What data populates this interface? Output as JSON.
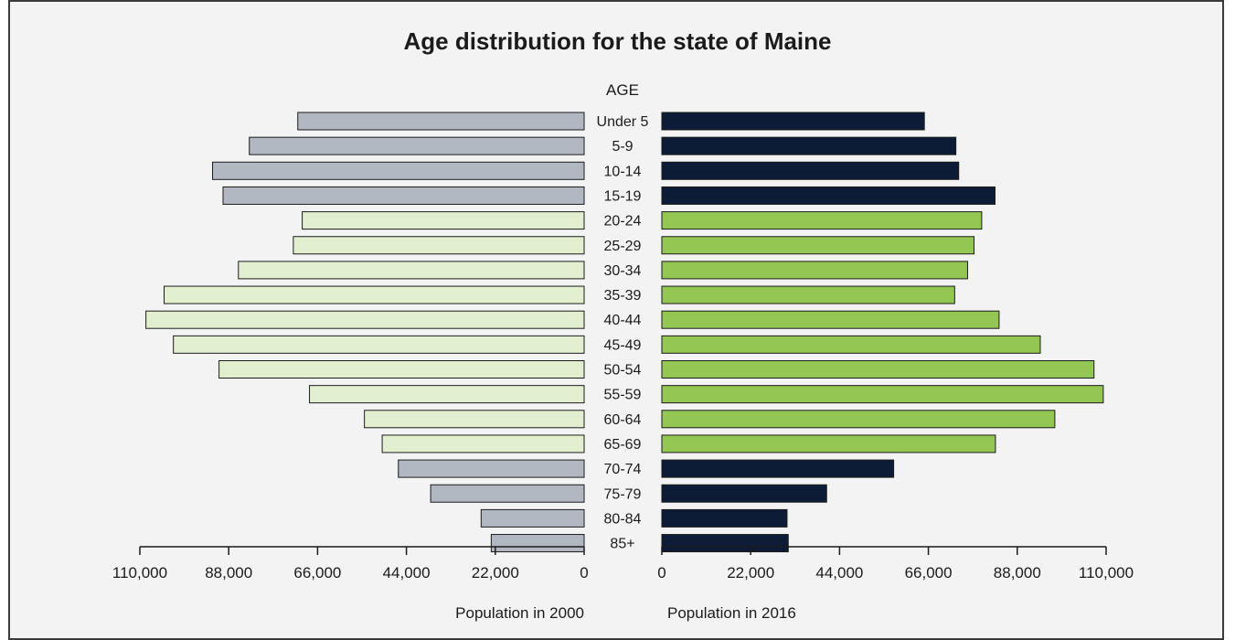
{
  "chart_data": {
    "type": "bar",
    "title": "Age distribution for the state of Maine",
    "center_header": "AGE",
    "categories": [
      "Under 5",
      "5-9",
      "10-14",
      "15-19",
      "20-24",
      "25-29",
      "30-34",
      "35-39",
      "40-44",
      "45-49",
      "50-54",
      "55-59",
      "60-64",
      "65-69",
      "70-74",
      "75-79",
      "80-84",
      "85+"
    ],
    "series": [
      {
        "name": "Population in 2000",
        "side": "left",
        "values": [
          70900,
          82900,
          92000,
          89400,
          69800,
          72000,
          85600,
          104000,
          108500,
          101700,
          90400,
          68000,
          54400,
          50000,
          46000,
          38000,
          25500,
          23000
        ]
      },
      {
        "name": "Population in 2016",
        "side": "right",
        "values": [
          65000,
          72800,
          73500,
          82500,
          79200,
          77300,
          75700,
          72500,
          83500,
          93700,
          107000,
          109300,
          97300,
          82600,
          57400,
          40800,
          31000,
          31300
        ]
      }
    ],
    "highlight_categories": [
      "20-24",
      "25-29",
      "30-34",
      "35-39",
      "40-44",
      "45-49",
      "50-54",
      "55-59",
      "60-64",
      "65-69"
    ],
    "colors": {
      "left_default": "#b2b8c2",
      "left_highlight": "#e2efcf",
      "right_default": "#0c1c36",
      "right_highlight": "#94c654",
      "bar_stroke": "#1b1b1b",
      "background": "#f3f3f3"
    },
    "left_axis": {
      "label": "Population in 2000",
      "ticks": [
        110000,
        88000,
        66000,
        44000,
        22000,
        0
      ],
      "tick_labels": [
        "110,000",
        "88,000",
        "66,000",
        "44,000",
        "22,000",
        "0"
      ],
      "range": [
        0,
        110000
      ]
    },
    "right_axis": {
      "label": "Population in 2016",
      "ticks": [
        0,
        22000,
        44000,
        66000,
        88000,
        110000
      ],
      "tick_labels": [
        "0",
        "22,000",
        "44,000",
        "66,000",
        "88,000",
        "110,000"
      ],
      "range": [
        0,
        110000
      ]
    },
    "grid": false,
    "legend": "none"
  }
}
